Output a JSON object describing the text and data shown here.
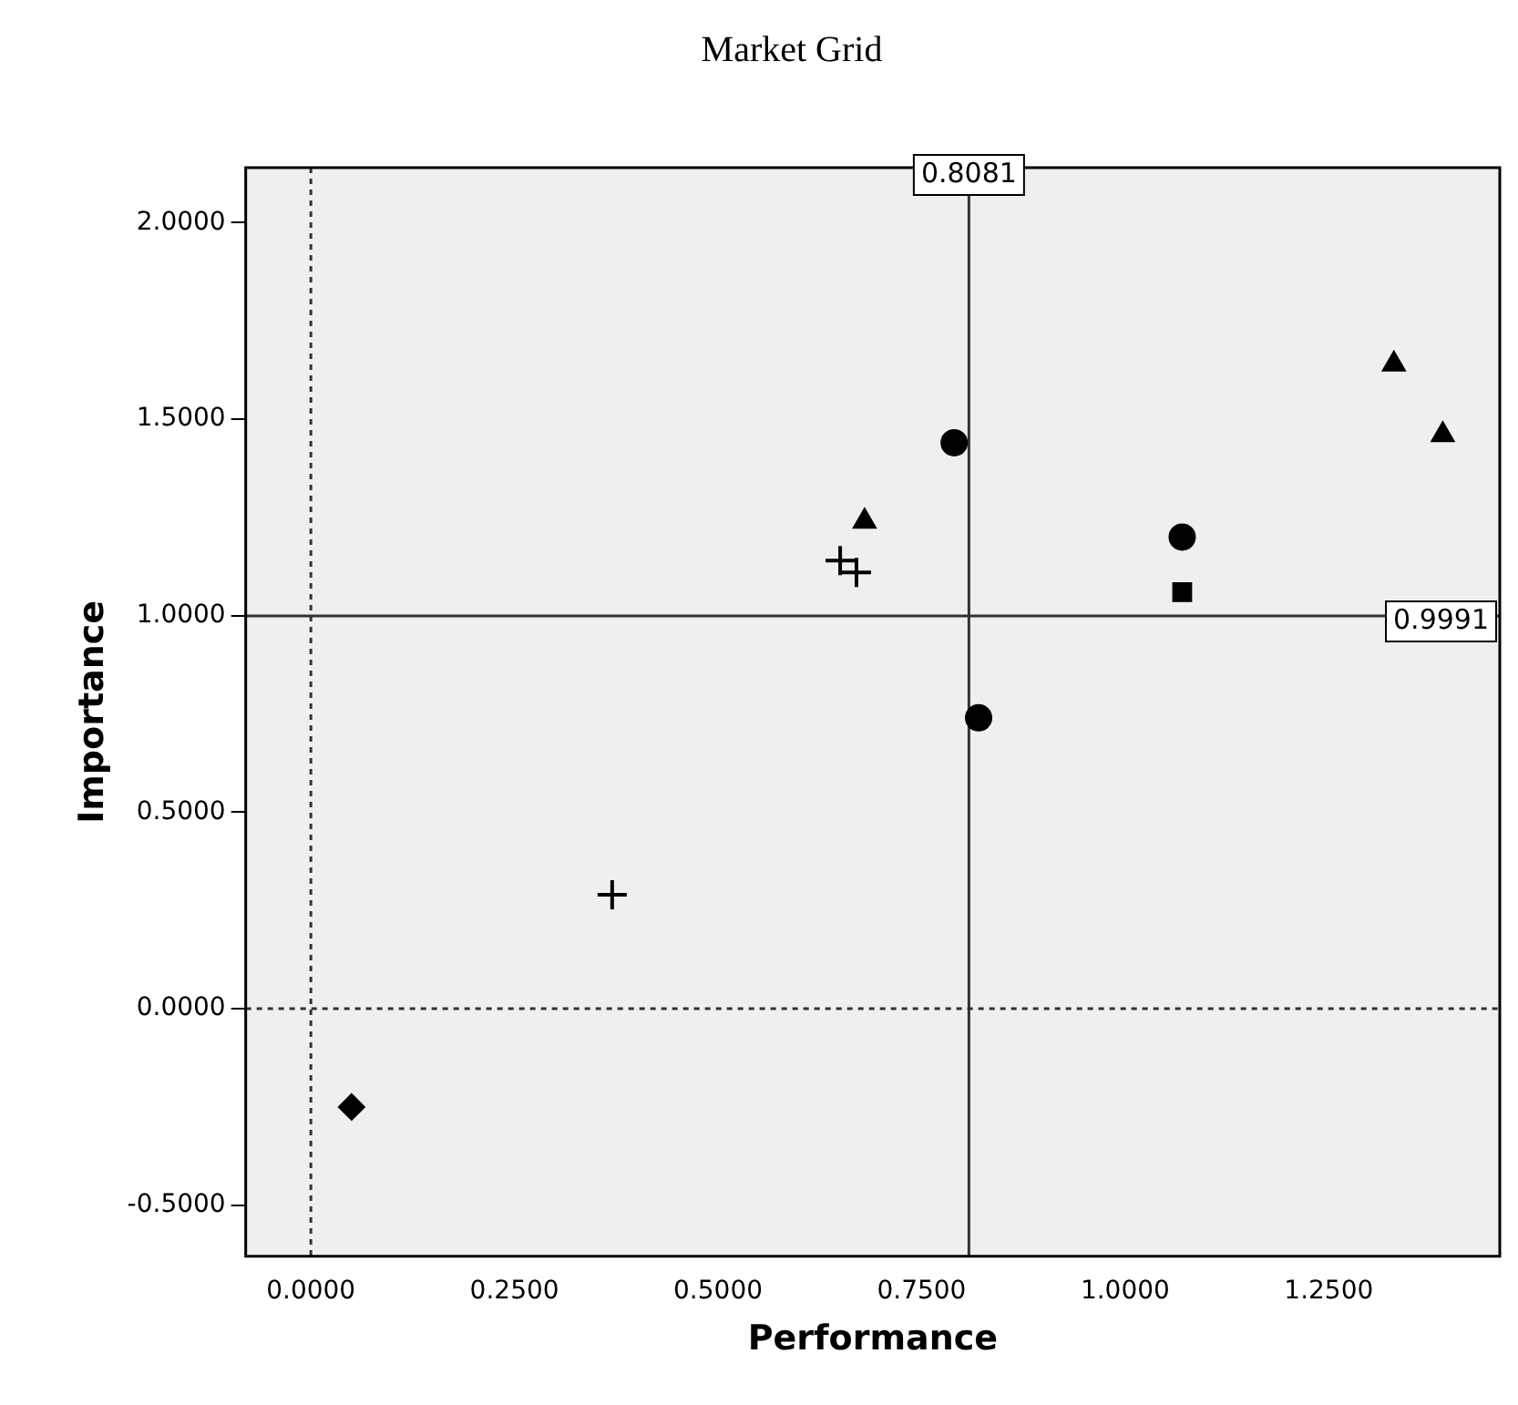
{
  "chart_data": {
    "type": "scatter",
    "title": "Market Grid",
    "xlabel": "Performance",
    "ylabel": "Importance",
    "xlim": [
      -0.08,
      1.46
    ],
    "ylim": [
      -0.63,
      2.14
    ],
    "xticks": [
      {
        "value": 0,
        "label": "0.0000"
      },
      {
        "value": 0.25,
        "label": "0.2500"
      },
      {
        "value": 0.5,
        "label": "0.5000"
      },
      {
        "value": 0.75,
        "label": "0.7500"
      },
      {
        "value": 1,
        "label": "1.0000"
      },
      {
        "value": 1.25,
        "label": "1.2500"
      }
    ],
    "yticks": [
      {
        "value": -0.5,
        "label": "-0.5000"
      },
      {
        "value": 0,
        "label": "0.0000"
      },
      {
        "value": 0.5,
        "label": "0.5000"
      },
      {
        "value": 1,
        "label": "1.0000"
      },
      {
        "value": 1.5,
        "label": "1.5000"
      },
      {
        "value": 2,
        "label": "2.0000"
      }
    ],
    "grid": false,
    "legend": false,
    "series": [
      {
        "color": "#000000",
        "marker": "diamond",
        "x": [
          0.05
        ],
        "values": [
          -0.25
        ]
      },
      {
        "color": "#000000",
        "marker": "cross",
        "x": [
          0.37
        ],
        "values": [
          0.29
        ]
      },
      {
        "color": "#000000",
        "marker": "cross",
        "x": [
          0.65
        ],
        "values": [
          1.14
        ]
      },
      {
        "color": "#000000",
        "marker": "cross",
        "x": [
          0.67
        ],
        "values": [
          1.11
        ]
      },
      {
        "color": "#000000",
        "marker": "triangle",
        "x": [
          0.68
        ],
        "values": [
          1.24
        ]
      },
      {
        "color": "#000000",
        "marker": "circle",
        "x": [
          0.79
        ],
        "values": [
          1.44
        ]
      },
      {
        "color": "#000000",
        "marker": "circle",
        "x": [
          0.82
        ],
        "values": [
          0.74
        ]
      },
      {
        "color": "#000000",
        "marker": "circle",
        "x": [
          1.07
        ],
        "values": [
          1.2
        ]
      },
      {
        "color": "#000000",
        "marker": "square",
        "x": [
          1.07
        ],
        "values": [
          1.06
        ]
      },
      {
        "color": "#000000",
        "marker": "triangle",
        "x": [
          1.33
        ],
        "values": [
          1.64
        ]
      },
      {
        "color": "#000000",
        "marker": "triangle",
        "x": [
          1.39
        ],
        "values": [
          1.46
        ]
      }
    ],
    "ref_lines": [
      {
        "axis": "x",
        "value": 0.8081,
        "label": "0.8081",
        "color": "#333333",
        "line_style": "solid"
      },
      {
        "axis": "y",
        "value": 0.9991,
        "label": "0.9991",
        "color": "#333333",
        "line_style": "solid"
      },
      {
        "axis": "x",
        "value": 0,
        "color": "#333333",
        "line_style": "dotted"
      },
      {
        "axis": "y",
        "value": 0,
        "color": "#333333",
        "line_style": "dotted"
      }
    ]
  }
}
